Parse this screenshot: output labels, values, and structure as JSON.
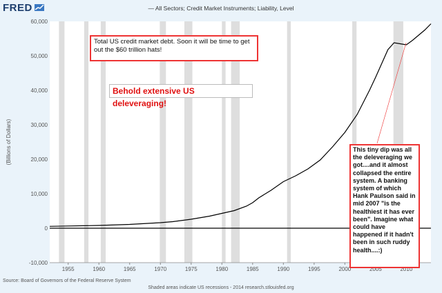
{
  "header": {
    "logo": "FRED",
    "title": "— All Sectors; Credit Market Instruments; Liability, Level"
  },
  "chart_data": {
    "type": "line",
    "title": "— All Sectors; Credit Market Instruments; Liability, Level",
    "xlabel": "",
    "ylabel": "(Billions of Dollars)",
    "xlim": [
      1952,
      2014
    ],
    "ylim": [
      -10000,
      60000
    ],
    "xticks": [
      1955,
      1960,
      1965,
      1970,
      1975,
      1980,
      1985,
      1990,
      1995,
      2000,
      2005,
      2010
    ],
    "yticks": [
      -10000,
      0,
      10000,
      20000,
      30000,
      40000,
      50000,
      60000
    ],
    "ytick_labels": [
      "-10,000",
      "0",
      "10,000",
      "20,000",
      "30,000",
      "40,000",
      "50,000",
      "60,000"
    ],
    "recessions": [
      [
        1953.5,
        1954.4
      ],
      [
        1957.6,
        1958.3
      ],
      [
        1960.3,
        1961.1
      ],
      [
        1969.9,
        1970.9
      ],
      [
        1973.9,
        1975.2
      ],
      [
        1980.0,
        1980.6
      ],
      [
        1981.5,
        1982.9
      ],
      [
        1990.6,
        1991.2
      ],
      [
        2001.2,
        2001.9
      ],
      [
        2007.9,
        2009.5
      ]
    ],
    "series": [
      {
        "name": "Credit Market Debt",
        "x": [
          1952,
          1955,
          1960,
          1965,
          1970,
          1972,
          1975,
          1978,
          1980,
          1982,
          1984,
          1985,
          1986,
          1988,
          1990,
          1992,
          1994,
          1996,
          1998,
          2000,
          2002,
          2003,
          2004,
          2005,
          2006,
          2007,
          2008,
          2009,
          2010,
          2011,
          2012,
          2013,
          2014
        ],
        "values": [
          550,
          650,
          800,
          1100,
          1600,
          1900,
          2600,
          3500,
          4300,
          5100,
          6400,
          7400,
          8800,
          11000,
          13500,
          15200,
          17200,
          19800,
          23600,
          27800,
          33000,
          36500,
          40000,
          43800,
          47800,
          51800,
          53800,
          53500,
          53200,
          54500,
          56000,
          57500,
          59300
        ]
      }
    ]
  },
  "annotations": {
    "total_debt": "Total US credit market debt. Soon it will be time to get out the $60 trillion hats!",
    "behold": "Behold extensive US deleveraging!",
    "dip": "This tiny dip was all the deleveraging we got....and it almost collapsed the entire system. A banking system of which Hank Paulson said in mid 2007 \"is the healthiest it has ever been\". Imagine what could have happened if it hadn't been in such ruddy health....:)"
  },
  "footer": {
    "source": "Source: Board of Governors of the Federal Reserve System",
    "note": "Shaded areas indicate US recessions - 2014 research.stlouisfed.org"
  },
  "colors": {
    "background": "#eaf3fa",
    "plot_bg": "#ffffff",
    "recession": "#dedede",
    "line": "#000000",
    "annotation_border": "#e33333"
  }
}
